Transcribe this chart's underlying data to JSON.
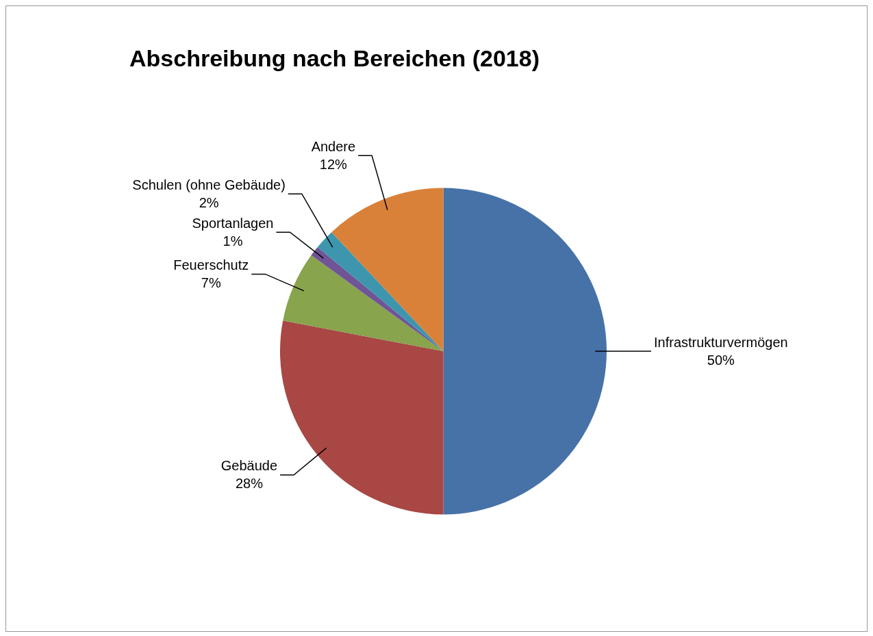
{
  "chart_data": {
    "type": "pie",
    "title": "Abschreibung nach Bereichen (2018)",
    "categories": [
      "Infrastrukturvermögen",
      "Gebäude",
      "Feuerschutz",
      "Sportanlagen",
      "Schulen (ohne Gebäude)",
      "Andere"
    ],
    "values": [
      50,
      28,
      7,
      1,
      2,
      12
    ],
    "colors": [
      "#4672a8",
      "#a84744",
      "#88a44d",
      "#6f5496",
      "#3e96ae",
      "#da8139"
    ],
    "value_labels": [
      "50%",
      "28%",
      "7%",
      "1%",
      "2%",
      "12%"
    ],
    "legend": false
  }
}
